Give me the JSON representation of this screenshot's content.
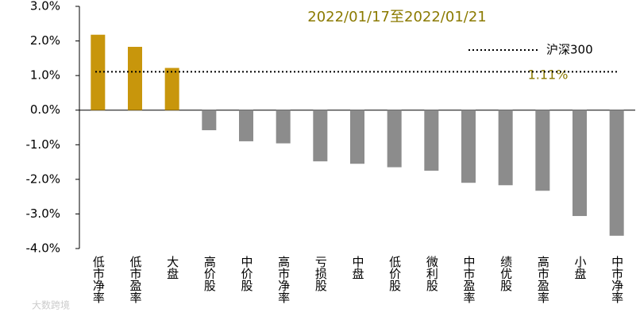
{
  "chart_data": {
    "type": "bar",
    "title": "2022/01/17至2022/01/21",
    "categories": [
      "低市净率",
      "低市盈率",
      "大盘",
      "高价股",
      "中价股",
      "高市净率",
      "亏损股",
      "中盘",
      "低价股",
      "微利股",
      "中市盈率",
      "绩优股",
      "高市盈率",
      "小盘",
      "中市净率"
    ],
    "values": [
      2.18,
      1.83,
      1.22,
      -0.58,
      -0.9,
      -0.96,
      -1.48,
      -1.55,
      -1.65,
      -1.75,
      -2.1,
      -2.17,
      -2.33,
      -3.06,
      -3.63
    ],
    "positive_color": "#c8960c",
    "negative_color": "#8c8c8c",
    "ylim": [
      -4,
      3
    ],
    "yticks": [
      {
        "value": -4,
        "label": "-4.0%"
      },
      {
        "value": -3,
        "label": "-3.0%"
      },
      {
        "value": -2,
        "label": "-2.0%"
      },
      {
        "value": -1,
        "label": "-1.0%"
      },
      {
        "value": 0,
        "label": "0.0%"
      },
      {
        "value": 1,
        "label": "1.0%"
      },
      {
        "value": 2,
        "label": "2.0%"
      },
      {
        "value": 3,
        "label": "3.0%"
      }
    ],
    "reference_line": {
      "name": "沪深300",
      "value": 1.11,
      "value_label": "1.11%"
    },
    "watermark": "大数跨境"
  }
}
